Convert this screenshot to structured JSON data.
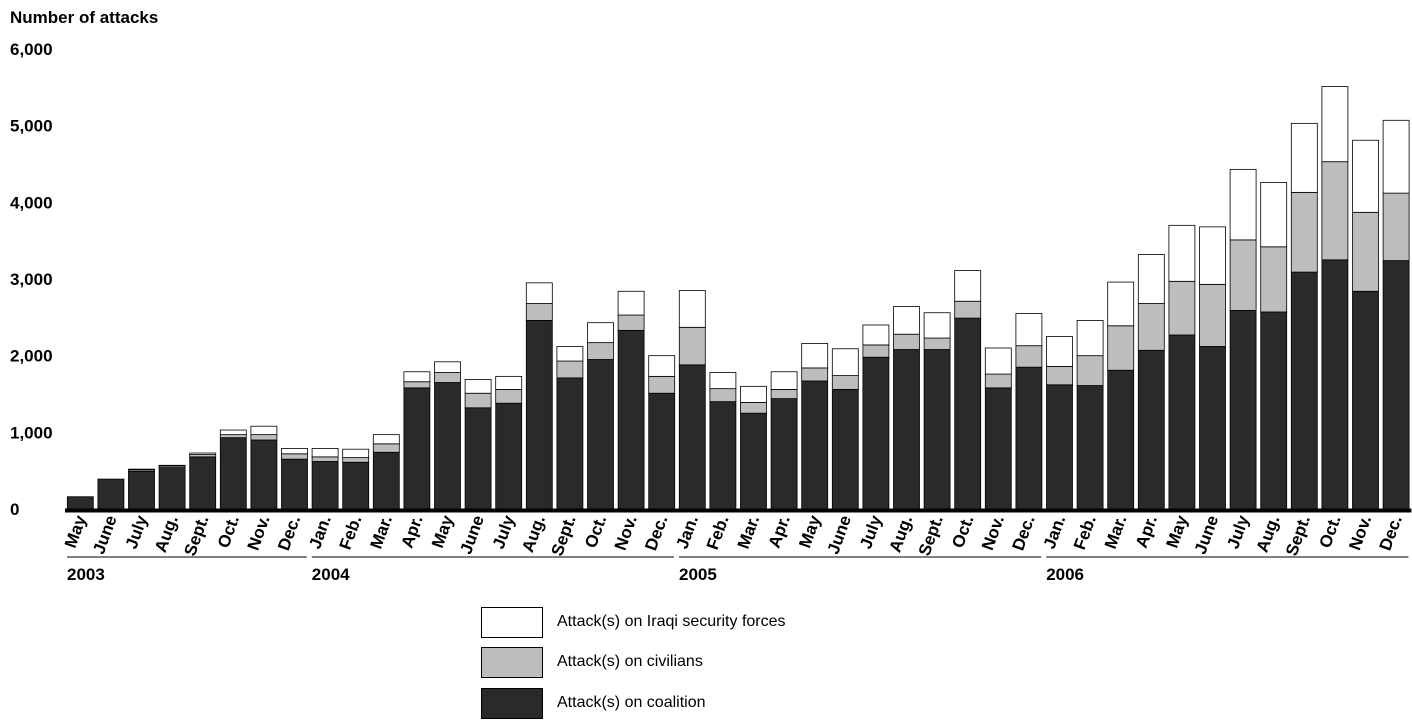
{
  "chart_data": {
    "type": "bar",
    "stacked": true,
    "ylabel": "Number of attacks",
    "ylim": [
      0,
      6000
    ],
    "yticks": [
      0,
      1000,
      2000,
      3000,
      4000,
      5000,
      6000
    ],
    "ytick_labels": [
      "0",
      "1,000",
      "2,000",
      "3,000",
      "4,000",
      "5,000",
      "6,000"
    ],
    "grid": false,
    "legend_placement": "bottom-center",
    "categories": [
      "May",
      "June",
      "July",
      "Aug.",
      "Sept.",
      "Oct.",
      "Nov.",
      "Dec.",
      "Jan.",
      "Feb.",
      "Mar.",
      "Apr.",
      "May",
      "June",
      "July",
      "Aug.",
      "Sept.",
      "Oct.",
      "Nov.",
      "Dec.",
      "Jan.",
      "Feb.",
      "Mar.",
      "Apr.",
      "May",
      "June",
      "July",
      "Aug.",
      "Sept.",
      "Oct.",
      "Nov.",
      "Dec.",
      "Jan.",
      "Feb.",
      "Mar.",
      "Apr.",
      "May",
      "June",
      "July",
      "Aug.",
      "Sept.",
      "Oct.",
      "Nov.",
      "Dec."
    ],
    "years": [
      {
        "label": "2003",
        "start": 0,
        "end": 7
      },
      {
        "label": "2004",
        "start": 8,
        "end": 19
      },
      {
        "label": "2005",
        "start": 20,
        "end": 31
      },
      {
        "label": "2006",
        "start": 32,
        "end": 43
      }
    ],
    "series": [
      {
        "name": "Attack(s) on coalition",
        "color": "#2a2a2a",
        "values": [
          160,
          390,
          490,
          540,
          680,
          930,
          900,
          650,
          620,
          610,
          740,
          1580,
          1650,
          1320,
          1380,
          2460,
          1710,
          1950,
          2330,
          1510,
          1880,
          1400,
          1250,
          1440,
          1670,
          1560,
          1980,
          2080,
          2080,
          2490,
          1580,
          1850,
          1620,
          1610,
          1810,
          2070,
          2270,
          2120,
          2590,
          2570,
          3090,
          3250,
          2840,
          3240
        ]
      },
      {
        "name": "Attack(s) on civilians",
        "color": "#bdbdbd",
        "values": [
          0,
          0,
          20,
          20,
          30,
          40,
          70,
          70,
          60,
          60,
          110,
          80,
          130,
          190,
          180,
          220,
          220,
          220,
          200,
          220,
          490,
          170,
          140,
          120,
          170,
          180,
          160,
          200,
          150,
          220,
          180,
          280,
          240,
          390,
          580,
          610,
          700,
          810,
          920,
          850,
          1040,
          1280,
          1030,
          880
        ]
      },
      {
        "name": "Attack(s) on Iraqi security forces",
        "color": "#ffffff",
        "values": [
          0,
          0,
          10,
          10,
          20,
          60,
          110,
          70,
          110,
          110,
          120,
          130,
          140,
          180,
          170,
          270,
          190,
          260,
          310,
          270,
          480,
          210,
          210,
          230,
          320,
          350,
          260,
          360,
          330,
          400,
          340,
          420,
          390,
          460,
          570,
          640,
          730,
          750,
          920,
          840,
          900,
          980,
          940,
          950
        ]
      }
    ]
  }
}
